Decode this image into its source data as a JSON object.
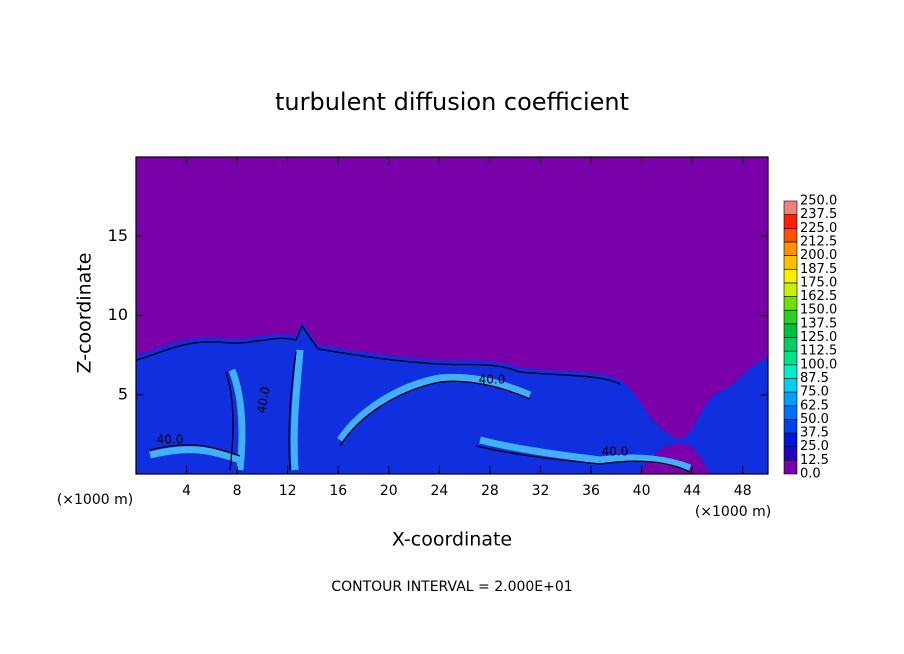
{
  "chart_data": {
    "type": "contour",
    "title": "turbulent diffusion coefficient",
    "x_label": "X-coordinate",
    "y_label": "Z-coordinate",
    "x_unit": "(×1000 m)",
    "y_unit": "(×1000 m)",
    "annotation": "CONTOUR INTERVAL = 2.000E+01",
    "contour_labels": [
      "40.0",
      "40.0",
      "40.0",
      "40.0"
    ],
    "xlim": [
      0,
      50
    ],
    "ylim": [
      0,
      20
    ],
    "xticks": [
      4,
      8,
      12,
      16,
      20,
      24,
      28,
      32,
      36,
      40,
      44,
      48
    ],
    "yticks": [
      5,
      10,
      15
    ],
    "colorbar": {
      "levels": [
        {
          "value": 0,
          "label": "0.0"
        },
        {
          "value": 12.5,
          "label": "12.5"
        },
        {
          "value": 25,
          "label": "25.0"
        },
        {
          "value": 37.5,
          "label": "37.5"
        },
        {
          "value": 50,
          "label": "50.0"
        },
        {
          "value": 62.5,
          "label": "62.5"
        },
        {
          "value": 75,
          "label": "75.0"
        },
        {
          "value": 87.5,
          "label": "87.5"
        },
        {
          "value": 100,
          "label": "100.0"
        },
        {
          "value": 112.5,
          "label": "112.5"
        },
        {
          "value": 125,
          "label": "125.0"
        },
        {
          "value": 137.5,
          "label": "137.5"
        },
        {
          "value": 150,
          "label": "150.0"
        },
        {
          "value": 162.5,
          "label": "162.5"
        },
        {
          "value": 175,
          "label": "175.0"
        },
        {
          "value": 187.5,
          "label": "187.5"
        },
        {
          "value": 200,
          "label": "200.0"
        },
        {
          "value": 212.5,
          "label": "212.5"
        },
        {
          "value": 225,
          "label": "225.0"
        },
        {
          "value": 237.5,
          "label": "237.5"
        },
        {
          "value": 250,
          "label": "250.0"
        }
      ],
      "colors": [
        "#7a00aa",
        "#2400c0",
        "#0014d8",
        "#0040f0",
        "#0070ff",
        "#00a0ff",
        "#00d0f0",
        "#00f0c8",
        "#00e488",
        "#00d064",
        "#00c040",
        "#28d020",
        "#70e000",
        "#c8f000",
        "#f4f000",
        "#ffc000",
        "#ff9000",
        "#ff5000",
        "#ff2000",
        "#f08080"
      ]
    }
  }
}
